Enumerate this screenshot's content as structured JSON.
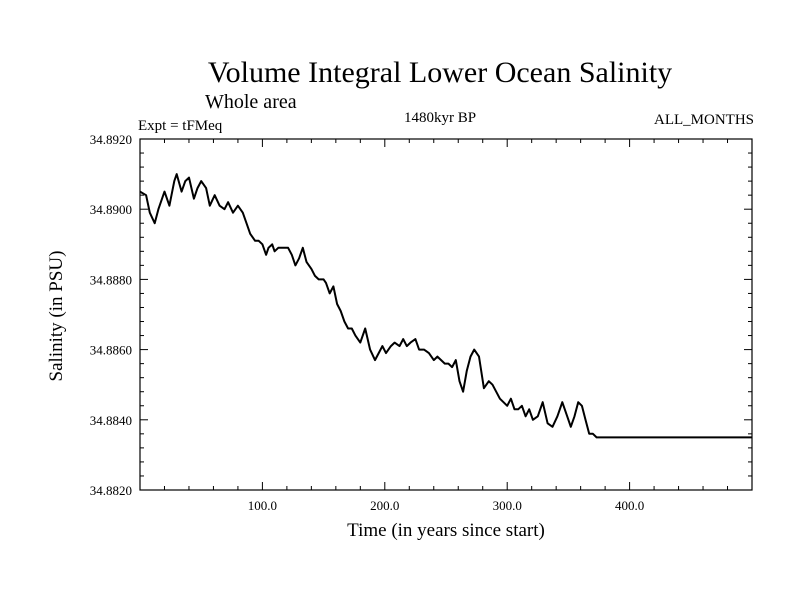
{
  "chart_data": {
    "type": "line",
    "title": "Volume Integral Lower Ocean Salinity",
    "subtitle": "Whole area",
    "left_label": "Expt = tFMeq",
    "center_label": "1480kyr BP",
    "right_label": "ALL_MONTHS",
    "xlabel": "Time (in years since start)",
    "ylabel": "Salinity (in PSU)",
    "xlim": [
      0,
      500
    ],
    "ylim": [
      34.882,
      34.892
    ],
    "xticks": [
      {
        "value": 100,
        "label": "100.0"
      },
      {
        "value": 200,
        "label": "200.0"
      },
      {
        "value": 300,
        "label": "300.0"
      },
      {
        "value": 400,
        "label": "400.0"
      }
    ],
    "yticks": [
      {
        "value": 34.882,
        "label": "34.8820"
      },
      {
        "value": 34.884,
        "label": "34.8840"
      },
      {
        "value": 34.886,
        "label": "34.8860"
      },
      {
        "value": 34.888,
        "label": "34.8880"
      },
      {
        "value": 34.89,
        "label": "34.8900"
      },
      {
        "value": 34.892,
        "label": "34.8920"
      }
    ],
    "series": [
      {
        "name": "Salinity",
        "x": [
          0,
          5,
          8,
          12,
          15,
          20,
          24,
          28,
          30,
          34,
          37,
          40,
          44,
          47,
          50,
          54,
          57,
          61,
          65,
          69,
          72,
          76,
          80,
          84,
          87,
          90,
          94,
          97,
          100,
          103,
          105,
          108,
          110,
          113,
          117,
          121,
          124,
          127,
          130,
          133,
          136,
          140,
          143,
          146,
          150,
          152,
          155,
          158,
          161,
          164,
          167,
          170,
          173,
          176,
          180,
          184,
          188,
          192,
          195,
          198,
          201,
          205,
          208,
          212,
          215,
          218,
          221,
          225,
          228,
          232,
          236,
          240,
          243,
          246,
          249,
          252,
          255,
          258,
          261,
          264,
          267,
          270,
          273,
          277,
          281,
          285,
          288,
          291,
          294,
          297,
          300,
          303,
          306,
          309,
          312,
          315,
          318,
          321,
          325,
          329,
          333,
          337,
          341,
          345,
          349,
          352,
          355,
          358,
          361,
          364,
          367,
          370,
          373,
          376,
          379,
          382,
          385,
          388,
          391,
          394,
          397,
          400,
          403,
          406,
          409,
          412,
          415,
          418,
          421,
          424,
          427,
          430,
          433,
          436,
          439,
          442,
          445,
          448,
          451,
          454,
          457,
          460,
          463,
          466,
          469,
          472,
          475,
          478,
          481,
          484,
          487,
          490,
          494,
          497,
          500
        ],
        "values": [
          34.8905,
          34.8904,
          34.8899,
          34.8896,
          34.89,
          34.8905,
          34.8901,
          34.8908,
          34.891,
          34.8905,
          34.8908,
          34.8909,
          34.8903,
          34.8906,
          34.8908,
          34.8906,
          34.8901,
          34.8904,
          34.8901,
          34.89,
          34.8902,
          34.8899,
          34.8901,
          34.8899,
          34.8896,
          34.8893,
          34.8891,
          34.8891,
          34.889,
          34.8887,
          34.8889,
          34.889,
          34.8888,
          34.8889,
          34.8889,
          34.8889,
          34.8887,
          34.8884,
          34.8886,
          34.8889,
          34.8885,
          34.8883,
          34.8881,
          34.888,
          34.888,
          34.8879,
          34.8876,
          34.8878,
          34.8873,
          34.8871,
          34.8868,
          34.8866,
          34.8866,
          34.8864,
          34.8862,
          34.8866,
          34.886,
          34.8857,
          34.8859,
          34.8861,
          34.8859,
          34.8861,
          34.8862,
          34.8861,
          34.8863,
          34.8861,
          34.8862,
          34.8863,
          34.886,
          34.886,
          34.8859,
          34.8857,
          34.8858,
          34.8857,
          34.8856,
          34.8856,
          34.8855,
          34.8857,
          34.8851,
          34.8848,
          34.8854,
          34.8858,
          34.886,
          34.8858,
          34.8849,
          34.8851,
          34.885,
          34.8848,
          34.8846,
          34.8845,
          34.8844,
          34.8846,
          34.8843,
          34.8843,
          34.8844,
          34.8841,
          34.8843,
          34.884,
          34.8841,
          34.8845,
          34.8839,
          34.8838,
          34.8841,
          34.8845,
          34.8841,
          34.8838,
          34.8841,
          34.8845,
          34.8844,
          34.884,
          34.8836,
          34.8836,
          34.8835,
          34.8835,
          34.8835,
          34.8835,
          34.8835,
          34.8835,
          34.8835,
          34.8835,
          34.8835,
          34.8835,
          34.8835,
          34.8835,
          34.8835,
          34.8835,
          34.8835,
          34.8835,
          34.8835,
          34.8835,
          34.8835,
          34.8835,
          34.8835,
          34.8835,
          34.8835,
          34.8835,
          34.8835,
          34.8835,
          34.8835,
          34.8835,
          34.8835,
          34.8835,
          34.8835,
          34.8835,
          34.8835,
          34.8835,
          34.8835,
          34.8835,
          34.8835,
          34.8835,
          34.8835,
          34.8835,
          34.8835,
          34.8835,
          34.8835
        ]
      }
    ]
  }
}
